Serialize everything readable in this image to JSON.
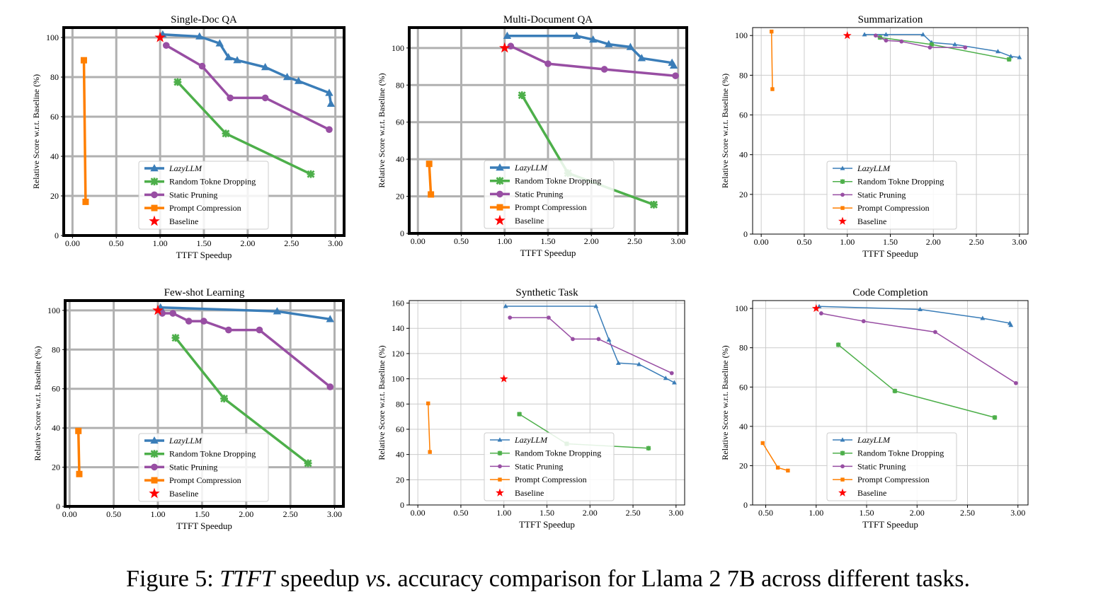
{
  "caption": {
    "prefix": "Figure 5: ",
    "italic1": "TTFT",
    "mid1": " speedup ",
    "italic2": "vs",
    "rest": ". accuracy comparison for Llama 2 7B across different tasks."
  },
  "legend_labels": [
    "LazyLLM",
    "Random Tokne Dropping",
    "Static Pruning",
    "Prompt Compression",
    "Baseline"
  ],
  "colors": {
    "lazyllm": "#3A7DB8",
    "random": "#4DAF4A",
    "static": "#984EA3",
    "prompt": "#FF7F00",
    "baseline": "#FF0000"
  },
  "chart_data": [
    {
      "type": "line",
      "title": "Single-Doc QA",
      "xlabel": "TTFT Speedup",
      "ylabel": "Relative Score w.r.t. Baseline (%)",
      "xlim": [
        -0.1,
        3.1
      ],
      "ylim": [
        0,
        105
      ],
      "xticks": [
        0,
        0.5,
        1,
        1.5,
        2,
        2.5,
        3
      ],
      "xtick_labels": [
        "0.00",
        "0.50",
        "1.00",
        "1.50",
        "2.00",
        "2.50",
        "3.00"
      ],
      "yticks": [
        0,
        20,
        40,
        60,
        80,
        100
      ],
      "ytick_labels": [
        "0",
        "20",
        "40",
        "60",
        "80",
        "100"
      ],
      "bold": true,
      "series": [
        {
          "name": "LazyLLM",
          "x": [
            1.03,
            1.45,
            1.68,
            1.78,
            1.88,
            2.2,
            2.45,
            2.58,
            2.93,
            2.95
          ],
          "y": [
            101.5,
            100.5,
            97,
            90,
            88.5,
            85,
            80,
            78,
            72,
            66.5
          ]
        },
        {
          "name": "Random Tokne Dropping",
          "x": [
            1.2,
            1.75,
            2.72
          ],
          "y": [
            77.5,
            51.5,
            31
          ]
        },
        {
          "name": "Static Pruning",
          "x": [
            1.07,
            1.48,
            1.8,
            2.2,
            2.93
          ],
          "y": [
            96,
            85.5,
            69.5,
            69.5,
            53.5
          ]
        },
        {
          "name": "Prompt Compression",
          "x": [
            0.13,
            0.15
          ],
          "y": [
            88.5,
            17
          ]
        },
        {
          "name": "Baseline",
          "x": [
            1.0
          ],
          "y": [
            100
          ]
        }
      ]
    },
    {
      "type": "line",
      "title": "Multi-Document QA",
      "xlabel": "TTFT Speedup",
      "ylabel": "Relative Score w.r.t. Baseline (%)",
      "xlim": [
        -0.1,
        3.1
      ],
      "ylim": [
        0,
        111
      ],
      "xticks": [
        0,
        0.5,
        1,
        1.5,
        2,
        2.5,
        3
      ],
      "xtick_labels": [
        "0.00",
        "0.50",
        "1.00",
        "1.50",
        "2.00",
        "2.50",
        "3.00"
      ],
      "yticks": [
        0,
        20,
        40,
        60,
        80,
        100
      ],
      "ytick_labels": [
        "0",
        "20",
        "40",
        "60",
        "80",
        "100"
      ],
      "bold": true,
      "series": [
        {
          "name": "LazyLLM",
          "x": [
            1.03,
            1.83,
            2.02,
            2.2,
            2.45,
            2.58,
            2.93,
            2.95
          ],
          "y": [
            106.5,
            106.5,
            104.5,
            102,
            100.5,
            94.5,
            92,
            90.5
          ]
        },
        {
          "name": "Random Tokne Dropping",
          "x": [
            1.2,
            1.73,
            2.72
          ],
          "y": [
            74.5,
            32.5,
            15.5
          ]
        },
        {
          "name": "Static Pruning",
          "x": [
            1.07,
            1.5,
            2.15,
            2.97
          ],
          "y": [
            101,
            91.5,
            88.5,
            85
          ]
        },
        {
          "name": "Prompt Compression",
          "x": [
            0.13,
            0.15
          ],
          "y": [
            37.5,
            21
          ]
        },
        {
          "name": "Baseline",
          "x": [
            1.0
          ],
          "y": [
            100
          ]
        }
      ]
    },
    {
      "type": "line",
      "title": "Summarization",
      "xlabel": "TTFT Speedup",
      "ylabel": "Relative Score w.r.t. Baseline (%)",
      "xlim": [
        -0.1,
        3.1
      ],
      "ylim": [
        0,
        104
      ],
      "xticks": [
        0,
        0.5,
        1,
        1.5,
        2,
        2.5,
        3
      ],
      "xtick_labels": [
        "0.00",
        "0.50",
        "1.00",
        "1.50",
        "2.00",
        "2.50",
        "3.00"
      ],
      "yticks": [
        0,
        20,
        40,
        60,
        80,
        100
      ],
      "ytick_labels": [
        "0",
        "20",
        "40",
        "60",
        "80",
        "100"
      ],
      "bold": false,
      "series": [
        {
          "name": "LazyLLM",
          "x": [
            1.2,
            1.45,
            1.88,
            1.98,
            2.25,
            2.75,
            2.9,
            3.0
          ],
          "y": [
            100.5,
            100.5,
            100.5,
            96.5,
            95.5,
            92,
            89.5,
            89
          ]
        },
        {
          "name": "Random Tokne Dropping",
          "x": [
            1.38,
            1.98,
            2.88
          ],
          "y": [
            99,
            95.5,
            88
          ]
        },
        {
          "name": "Static Pruning",
          "x": [
            1.33,
            1.45,
            1.63,
            1.96,
            2.37
          ],
          "y": [
            100,
            97.5,
            97,
            94,
            94
          ]
        },
        {
          "name": "Prompt Compression",
          "x": [
            0.12,
            0.13
          ],
          "y": [
            102,
            73
          ]
        },
        {
          "name": "Baseline",
          "x": [
            1.0
          ],
          "y": [
            100
          ]
        }
      ]
    },
    {
      "type": "line",
      "title": "Few-shot Learning",
      "xlabel": "TTFT Speedup",
      "ylabel": "Relative Score w.r.t. Baseline (%)",
      "xlim": [
        -0.05,
        3.1
      ],
      "ylim": [
        0,
        105
      ],
      "xticks": [
        0,
        0.5,
        1,
        1.5,
        2,
        2.5,
        3
      ],
      "xtick_labels": [
        "0.00",
        "0.50",
        "1.00",
        "1.50",
        "2.00",
        "2.50",
        "3.00"
      ],
      "yticks": [
        0,
        20,
        40,
        60,
        80,
        100
      ],
      "ytick_labels": [
        "0",
        "20",
        "40",
        "60",
        "80",
        "100"
      ],
      "bold": true,
      "series": [
        {
          "name": "LazyLLM",
          "x": [
            1.03,
            2.35,
            2.95
          ],
          "y": [
            101.5,
            99.5,
            95.5
          ]
        },
        {
          "name": "Random Tokne Dropping",
          "x": [
            1.2,
            1.75,
            2.7
          ],
          "y": [
            86,
            55,
            22
          ]
        },
        {
          "name": "Static Pruning",
          "x": [
            1.05,
            1.17,
            1.35,
            1.52,
            1.8,
            2.15,
            2.95
          ],
          "y": [
            98.5,
            98.5,
            94.5,
            94.5,
            90,
            90,
            61
          ]
        },
        {
          "name": "Prompt Compression",
          "x": [
            0.1,
            0.11
          ],
          "y": [
            38.5,
            16.5
          ]
        },
        {
          "name": "Baseline",
          "x": [
            1.0
          ],
          "y": [
            100
          ]
        }
      ]
    },
    {
      "type": "line",
      "title": "Synthetic Task",
      "xlabel": "TTFT Speedup",
      "ylabel": "Relative Score w.r.t. Baseline (%)",
      "xlim": [
        -0.1,
        3.1
      ],
      "ylim": [
        0,
        162
      ],
      "xticks": [
        0,
        0.5,
        1,
        1.5,
        2,
        2.5,
        3
      ],
      "xtick_labels": [
        "0.00",
        "0.50",
        "1.00",
        "1.50",
        "2.00",
        "2.50",
        "3.00"
      ],
      "yticks": [
        0,
        20,
        40,
        60,
        80,
        100,
        120,
        140,
        160
      ],
      "ytick_labels": [
        "0",
        "20",
        "40",
        "60",
        "80",
        "100",
        "120",
        "140",
        "160"
      ],
      "bold": false,
      "series": [
        {
          "name": "LazyLLM",
          "x": [
            1.02,
            2.07,
            2.22,
            2.33,
            2.57,
            2.88,
            2.98
          ],
          "y": [
            157.5,
            157.5,
            131,
            112.5,
            111.5,
            100.5,
            97
          ]
        },
        {
          "name": "Random Tokne Dropping",
          "x": [
            1.18,
            1.73,
            2.68
          ],
          "y": [
            72,
            48.5,
            45
          ]
        },
        {
          "name": "Static Pruning",
          "x": [
            1.07,
            1.52,
            1.8,
            2.1,
            2.95
          ],
          "y": [
            148.5,
            148.5,
            131.5,
            131.5,
            104.5
          ]
        },
        {
          "name": "Prompt Compression",
          "x": [
            0.12,
            0.14
          ],
          "y": [
            80.5,
            42
          ]
        },
        {
          "name": "Baseline",
          "x": [
            1.0
          ],
          "y": [
            100
          ]
        }
      ]
    },
    {
      "type": "line",
      "title": "Code Completion",
      "xlabel": "TTFT Speedup",
      "ylabel": "Relative Score w.r.t. Baseline (%)",
      "xlim": [
        0.37,
        3.1
      ],
      "ylim": [
        0,
        104
      ],
      "xticks": [
        0.5,
        1,
        1.5,
        2,
        2.5,
        3
      ],
      "xtick_labels": [
        "0.50",
        "1.00",
        "1.50",
        "2.00",
        "2.50",
        "3.00"
      ],
      "yticks": [
        0,
        20,
        40,
        60,
        80,
        100
      ],
      "ytick_labels": [
        "0",
        "20",
        "40",
        "60",
        "80",
        "100"
      ],
      "bold": false,
      "series": [
        {
          "name": "LazyLLM",
          "x": [
            1.03,
            2.03,
            2.65,
            2.92,
            2.93
          ],
          "y": [
            101,
            99.5,
            95,
            92.5,
            91.5
          ]
        },
        {
          "name": "Random Tokne Dropping",
          "x": [
            1.22,
            1.78,
            2.77
          ],
          "y": [
            81.5,
            58,
            44.5
          ]
        },
        {
          "name": "Static Pruning",
          "x": [
            1.05,
            1.47,
            2.18,
            2.98
          ],
          "y": [
            97.5,
            93.5,
            88,
            62
          ]
        },
        {
          "name": "Prompt Compression",
          "x": [
            0.47,
            0.62,
            0.72
          ],
          "y": [
            31.5,
            19,
            17.5
          ]
        },
        {
          "name": "Baseline",
          "x": [
            1.0
          ],
          "y": [
            100
          ]
        }
      ]
    }
  ]
}
